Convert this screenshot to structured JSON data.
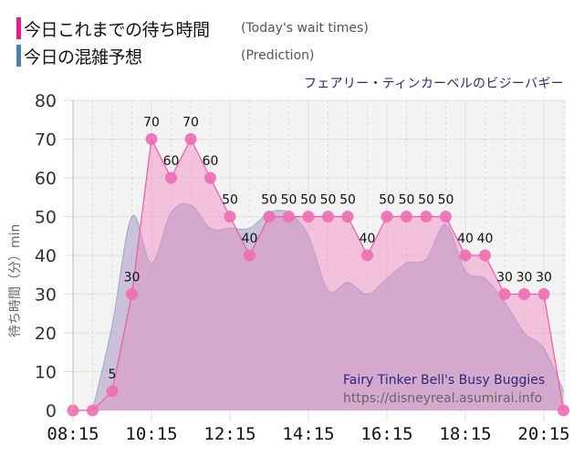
{
  "legend": {
    "items": [
      {
        "label_jp": "今日これまでの待ち時間",
        "label_en": "(Today's wait times)",
        "color": "#ee1a8c"
      },
      {
        "label_jp": "今日の混雑予想",
        "label_en": "(Prediction)",
        "color": "#4a82b4"
      }
    ]
  },
  "chart_title": "フェアリー・ティンカーベルのビジーバギー",
  "watermark": {
    "title": "Fairy Tinker Bell's Busy Buggies",
    "url": "https://disneyreal.asumirai.info"
  },
  "colors": {
    "actual_line": "#ee5aa8",
    "actual_fill": "#f9b6da",
    "actual_marker": "#ef6db3",
    "prediction_line": "#9db8cf",
    "prediction_fill": "#c9a6cf",
    "plot_bg": "#f3f3f3"
  },
  "chart_data": {
    "type": "area",
    "title": "フェアリー・ティンカーベルのビジーバギー",
    "xlabel": "",
    "ylabel": "待ち時間（分）min",
    "ylim": [
      0,
      80
    ],
    "yticks": [
      0,
      10,
      20,
      30,
      40,
      50,
      60,
      70,
      80
    ],
    "xtick_labels": [
      "08:15",
      "10:15",
      "12:15",
      "14:15",
      "16:15",
      "18:15",
      "20:15"
    ],
    "grid": true,
    "legend_position": "top-left",
    "x": [
      "08:15",
      "08:45",
      "09:15",
      "09:45",
      "10:15",
      "10:45",
      "11:15",
      "11:45",
      "12:15",
      "12:45",
      "13:15",
      "13:45",
      "14:15",
      "14:45",
      "15:15",
      "15:45",
      "16:15",
      "16:45",
      "17:15",
      "17:45",
      "18:15",
      "18:45",
      "19:15",
      "19:45",
      "20:15",
      "20:45"
    ],
    "series": [
      {
        "name": "今日これまでの待ち時間 (Today's wait times)",
        "values": [
          0,
          0,
          5,
          30,
          70,
          60,
          70,
          60,
          50,
          40,
          50,
          50,
          50,
          50,
          50,
          40,
          50,
          50,
          50,
          50,
          40,
          40,
          30,
          30,
          30,
          0
        ],
        "labeled": [
          false,
          false,
          true,
          true,
          true,
          true,
          true,
          true,
          true,
          true,
          true,
          true,
          true,
          true,
          true,
          true,
          true,
          true,
          true,
          true,
          true,
          true,
          true,
          true,
          true,
          false
        ]
      },
      {
        "name": "今日の混雑予想 (Prediction)",
        "values": [
          null,
          0,
          22,
          50,
          38,
          51,
          53,
          47,
          47,
          47,
          51,
          51,
          45,
          31,
          33,
          30,
          34,
          38,
          39,
          48,
          36,
          34,
          28,
          20,
          16,
          5
        ]
      }
    ]
  }
}
